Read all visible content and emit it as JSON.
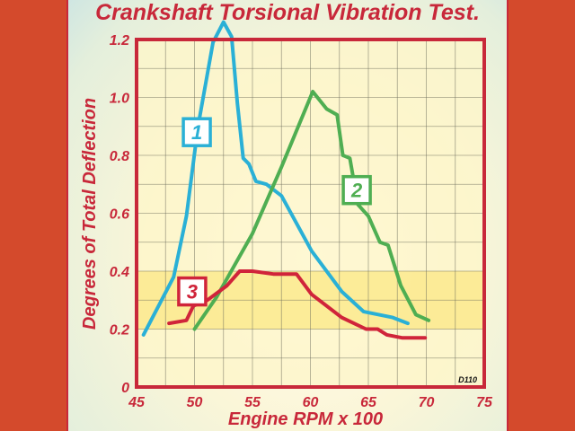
{
  "chart_data": {
    "type": "line",
    "title": "Crankshaft Torsional Vibration Test.",
    "xlabel": "Engine RPM x 100",
    "ylabel": "Degrees of Total Deflection",
    "xlim": [
      45,
      75
    ],
    "ylim": [
      0,
      1.2
    ],
    "x_ticks": [
      "45",
      "50",
      "55",
      "60",
      "65",
      "70",
      "75"
    ],
    "y_ticks": [
      "0",
      "0.2",
      "0.4",
      "0.6",
      "0.8",
      "1.0",
      "1.2"
    ],
    "grid": true,
    "highlight_band": [
      0.2,
      0.4
    ],
    "annotation": "D110",
    "colors": {
      "series1": "#2ab0d6",
      "series2": "#4fae52",
      "series3": "#d0243a",
      "axis": "#c8283a",
      "plot_bg": "#fdf6c8",
      "band": "#fbe98a"
    },
    "series": [
      {
        "name": "1",
        "color": "#2ab0d6",
        "points": [
          [
            45.6,
            0.18
          ],
          [
            48.2,
            0.38
          ],
          [
            49.3,
            0.59
          ],
          [
            50.3,
            0.9
          ],
          [
            51.6,
            1.19
          ],
          [
            52.5,
            1.26
          ],
          [
            53.2,
            1.21
          ],
          [
            53.7,
            0.98
          ],
          [
            54.2,
            0.79
          ],
          [
            54.7,
            0.77
          ],
          [
            55.3,
            0.71
          ],
          [
            56.2,
            0.7
          ],
          [
            57.5,
            0.66
          ],
          [
            60.1,
            0.47
          ],
          [
            62.7,
            0.33
          ],
          [
            64.6,
            0.26
          ],
          [
            67.1,
            0.24
          ],
          [
            68.4,
            0.22
          ]
        ]
      },
      {
        "name": "2",
        "color": "#4fae52",
        "points": [
          [
            50.0,
            0.2
          ],
          [
            51.9,
            0.31
          ],
          [
            55.0,
            0.53
          ],
          [
            57.5,
            0.76
          ],
          [
            60.2,
            1.02
          ],
          [
            61.4,
            0.96
          ],
          [
            62.3,
            0.94
          ],
          [
            62.8,
            0.8
          ],
          [
            63.4,
            0.79
          ],
          [
            64.1,
            0.63
          ],
          [
            65.0,
            0.59
          ],
          [
            66.0,
            0.5
          ],
          [
            66.7,
            0.49
          ],
          [
            67.8,
            0.35
          ],
          [
            69.1,
            0.25
          ],
          [
            70.2,
            0.23
          ]
        ]
      },
      {
        "name": "3",
        "color": "#d0243a",
        "points": [
          [
            47.8,
            0.22
          ],
          [
            49.3,
            0.23
          ],
          [
            49.9,
            0.28
          ],
          [
            51.1,
            0.3
          ],
          [
            52.8,
            0.35
          ],
          [
            53.9,
            0.4
          ],
          [
            55.0,
            0.4
          ],
          [
            56.8,
            0.39
          ],
          [
            58.8,
            0.39
          ],
          [
            60.1,
            0.32
          ],
          [
            62.7,
            0.24
          ],
          [
            64.8,
            0.2
          ],
          [
            65.8,
            0.2
          ],
          [
            66.6,
            0.18
          ],
          [
            67.9,
            0.17
          ],
          [
            69.9,
            0.17
          ]
        ]
      }
    ],
    "series_label_positions": [
      [
        50.2,
        0.88
      ],
      [
        64.0,
        0.68
      ],
      [
        49.8,
        0.33
      ]
    ]
  }
}
